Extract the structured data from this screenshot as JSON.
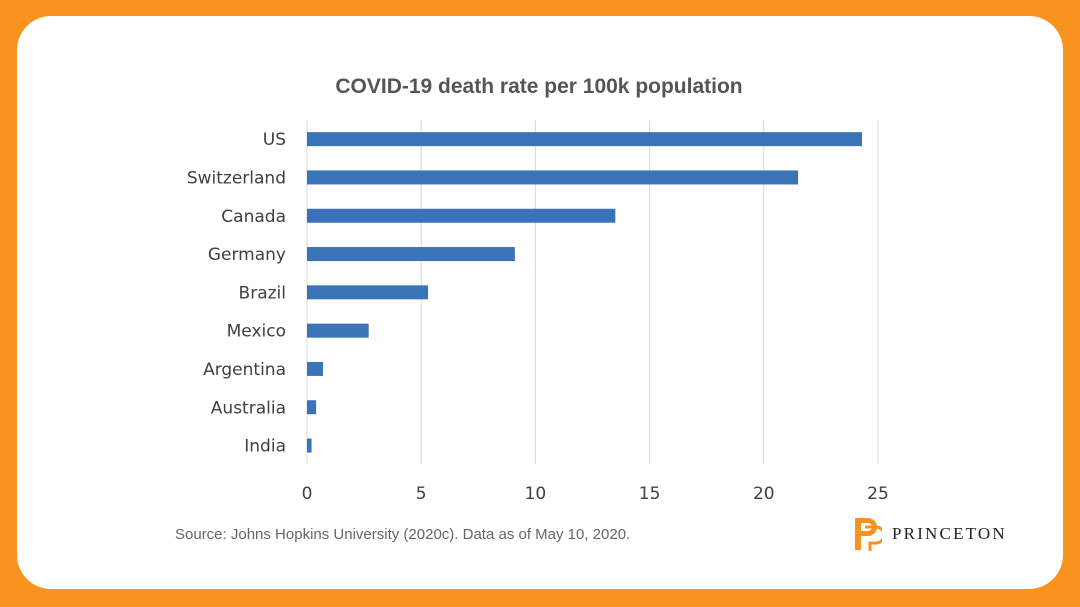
{
  "chart_data": {
    "type": "bar",
    "orientation": "horizontal",
    "title": "COVID-19 death rate per 100k population",
    "categories": [
      "US",
      "Switzerland",
      "Canada",
      "Germany",
      "Brazil",
      "Mexico",
      "Argentina",
      "Australia",
      "India"
    ],
    "values": [
      24.3,
      21.5,
      13.5,
      9.1,
      5.3,
      2.7,
      0.7,
      0.4,
      0.2
    ],
    "xlim": [
      0,
      25
    ],
    "xticks": [
      "0",
      "5",
      "10",
      "15",
      "20",
      "25"
    ],
    "xtick_values": [
      0,
      5,
      10,
      15,
      20,
      25
    ],
    "grid": "vertical",
    "bar_color": "#3a73b8",
    "xlabel": "",
    "ylabel": ""
  },
  "source_note": "Source: Johns Hopkins University (2020c). Data as of May 10, 2020.",
  "logo": {
    "text": "PRINCETON",
    "color": "#f7931e"
  },
  "colors": {
    "frame": "#f7931e",
    "grid": "#d9d9d9",
    "axis_text": "#404040"
  }
}
